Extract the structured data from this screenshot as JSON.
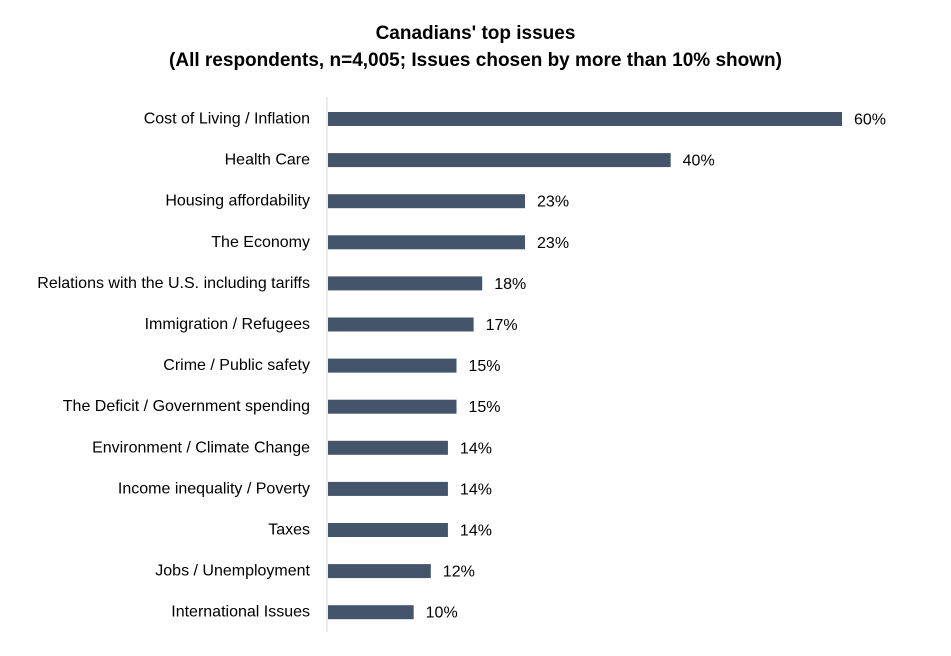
{
  "chart_data": {
    "type": "bar",
    "orientation": "horizontal",
    "title": "Canadians' top issues",
    "subtitle": "(All respondents, n=4,005; Issues chosen by more than 10% shown)",
    "categories": [
      "Cost of Living / Inflation",
      "Health Care",
      "Housing affordability",
      "The Economy",
      "Relations with the U.S. including tariffs",
      "Immigration / Refugees",
      "Crime / Public safety",
      "The Deficit / Government spending",
      "Environment / Climate Change",
      "Income inequality / Poverty",
      "Taxes",
      "Jobs / Unemployment",
      "International Issues"
    ],
    "values": [
      60,
      40,
      23,
      23,
      18,
      17,
      15,
      15,
      14,
      14,
      14,
      12,
      10
    ],
    "value_labels": [
      "60%",
      "40%",
      "23%",
      "23%",
      "18%",
      "17%",
      "15%",
      "15%",
      "14%",
      "14%",
      "14%",
      "12%",
      "10%"
    ],
    "xlabel": "",
    "ylabel": "",
    "bar_color": "#44546a",
    "axis_color": "#d9d9d9",
    "grid": false,
    "legend": "none",
    "xlim": [
      0,
      60
    ]
  }
}
